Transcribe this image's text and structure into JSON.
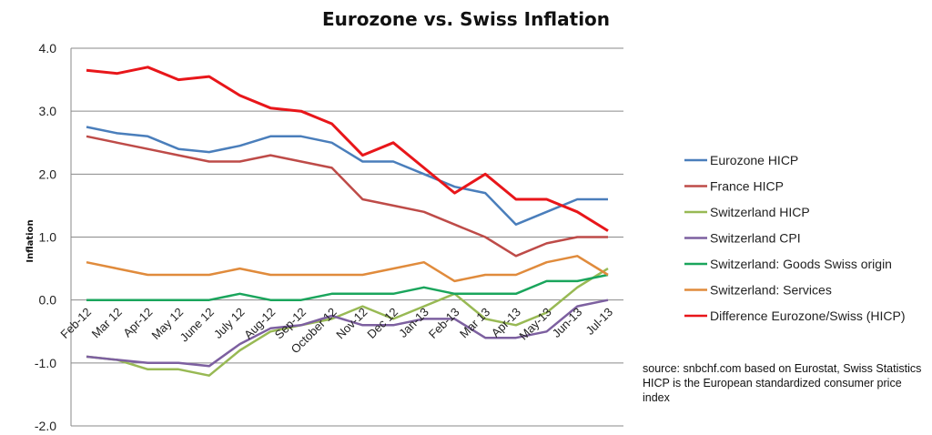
{
  "chart_data": {
    "type": "line",
    "title": "Eurozone vs. Swiss Inflation",
    "xlabel": "",
    "ylabel": "Inflation",
    "ylim": [
      -2.0,
      4.0
    ],
    "yticks": [
      "4.0",
      "3.0",
      "2.0",
      "1.0",
      "0.0",
      "-1.0",
      "-2.0"
    ],
    "ytick_values": [
      4,
      3,
      2,
      1,
      0,
      -1,
      -2
    ],
    "grid": true,
    "legend_position": "right",
    "categories": [
      "Feb-12",
      "Mar 12",
      "Apr-12",
      "May 12",
      "June 12",
      "July 12",
      "Aug-12",
      "Sep-12",
      "October 12",
      "Nov-12",
      "Dec 12",
      "Jan-13",
      "Feb-13",
      "Mar 13",
      "Apr-13",
      "May-13",
      "Jun-13",
      "Jul-13"
    ],
    "series": [
      {
        "name": "Eurozone HICP",
        "color": "#4a7ebb",
        "values": [
          2.75,
          2.65,
          2.6,
          2.4,
          2.35,
          2.45,
          2.6,
          2.6,
          2.5,
          2.2,
          2.2,
          2.0,
          1.8,
          1.7,
          1.2,
          1.4,
          1.6,
          1.6
        ]
      },
      {
        "name": "France HICP",
        "color": "#be4b48",
        "values": [
          2.6,
          2.5,
          2.4,
          2.3,
          2.2,
          2.2,
          2.3,
          2.2,
          2.1,
          1.6,
          1.5,
          1.4,
          1.2,
          1.0,
          0.7,
          0.9,
          1.0,
          1.0
        ]
      },
      {
        "name": "Switzerland HICP",
        "color": "#98b954",
        "values": [
          -0.9,
          -0.95,
          -1.1,
          -1.1,
          -1.2,
          -0.8,
          -0.5,
          -0.4,
          -0.3,
          -0.1,
          -0.3,
          -0.1,
          0.1,
          -0.3,
          -0.4,
          -0.2,
          0.2,
          0.5
        ]
      },
      {
        "name": "Switzerland CPI",
        "color": "#7d60a0",
        "values": [
          -0.9,
          -0.95,
          -1.0,
          -1.0,
          -1.05,
          -0.7,
          -0.45,
          -0.4,
          -0.25,
          -0.4,
          -0.4,
          -0.3,
          -0.3,
          -0.6,
          -0.6,
          -0.5,
          -0.1,
          0.0
        ]
      },
      {
        "name": "Switzerland: Goods Swiss origin",
        "color": "#1aa55c",
        "values": [
          0.0,
          0.0,
          0.0,
          0.0,
          0.0,
          0.1,
          0.0,
          0.0,
          0.1,
          0.1,
          0.1,
          0.2,
          0.1,
          0.1,
          0.1,
          0.3,
          0.3,
          0.4
        ]
      },
      {
        "name": "Switzerland: Services",
        "color": "#e08b3c",
        "values": [
          0.6,
          0.5,
          0.4,
          0.4,
          0.4,
          0.5,
          0.4,
          0.4,
          0.4,
          0.4,
          0.5,
          0.6,
          0.3,
          0.4,
          0.4,
          0.6,
          0.7,
          0.4
        ]
      },
      {
        "name": "Difference Eurozone/Swiss (HICP)",
        "color": "#e8161a",
        "values": [
          3.65,
          3.6,
          3.7,
          3.5,
          3.55,
          3.25,
          3.05,
          3.0,
          2.8,
          2.3,
          2.5,
          2.1,
          1.7,
          2.0,
          1.6,
          1.6,
          1.4,
          1.1
        ]
      }
    ],
    "annotations": [
      "source: snbchf.com based on Eurostat, Swiss Statistics",
      "HICP is the European standardized consumer price",
      "index"
    ]
  }
}
